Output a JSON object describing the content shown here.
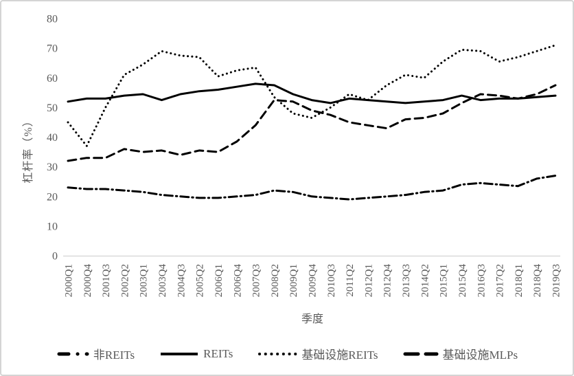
{
  "chart_data": {
    "type": "line",
    "title": "",
    "xlabel": "季度",
    "ylabel": "杠杆率（%）",
    "ylim": [
      0,
      80
    ],
    "yticks": [
      0,
      10,
      20,
      30,
      40,
      50,
      60,
      70,
      80
    ],
    "grid": false,
    "legend_position": "bottom",
    "line_color": "#000000",
    "axis_text_color": "#595959",
    "axis_line_color": "#d9d9d9",
    "categories": [
      "2000Q1",
      "2000Q4",
      "2001Q3",
      "2002Q2",
      "2003Q1",
      "2003Q4",
      "2004Q3",
      "2005Q2",
      "2006Q1",
      "2006Q4",
      "2007Q3",
      "2008Q2",
      "2009Q1",
      "2009Q4",
      "2010Q3",
      "2011Q2",
      "2012Q1",
      "2012Q4",
      "2013Q3",
      "2014Q2",
      "2015Q1",
      "2015Q4",
      "2016Q3",
      "2017Q2",
      "2018Q1",
      "2018Q4",
      "2019Q3"
    ],
    "series": [
      {
        "name": "非REITs",
        "style": "dashdot",
        "values": [
          23,
          22.5,
          22.5,
          22,
          21.5,
          20.5,
          20,
          19.5,
          19.5,
          20,
          20.5,
          22,
          21.5,
          20,
          19.5,
          19,
          19.5,
          20,
          20.5,
          21.5,
          22,
          24,
          24.5,
          24,
          23.5,
          26,
          27
        ]
      },
      {
        "name": "REITs",
        "style": "solid",
        "values": [
          52,
          53,
          53,
          54,
          54.5,
          52.5,
          54.5,
          55.5,
          56,
          57,
          58,
          57.5,
          54.5,
          52.5,
          51.5,
          53,
          52.5,
          52,
          51.5,
          52,
          52.5,
          54,
          52.5,
          53,
          53,
          53.5,
          54
        ]
      },
      {
        "name": "基础设施REITs",
        "style": "dotted",
        "values": [
          45,
          37,
          50,
          61,
          64.5,
          69,
          67.5,
          67,
          60.5,
          62.5,
          63.5,
          53.5,
          48,
          46.5,
          50,
          54.5,
          52.5,
          57.5,
          61,
          60,
          65.5,
          69.5,
          69,
          65.5,
          67,
          69,
          71
        ]
      },
      {
        "name": "基础设施MLPs",
        "style": "dashed",
        "values": [
          32,
          33,
          33,
          36,
          35,
          35.5,
          34,
          35.5,
          35,
          38.5,
          44,
          52.5,
          52,
          49,
          47.5,
          45,
          44,
          43,
          46,
          46.5,
          48,
          51.5,
          54.5,
          54,
          53,
          54.5,
          57.5
        ]
      }
    ]
  }
}
